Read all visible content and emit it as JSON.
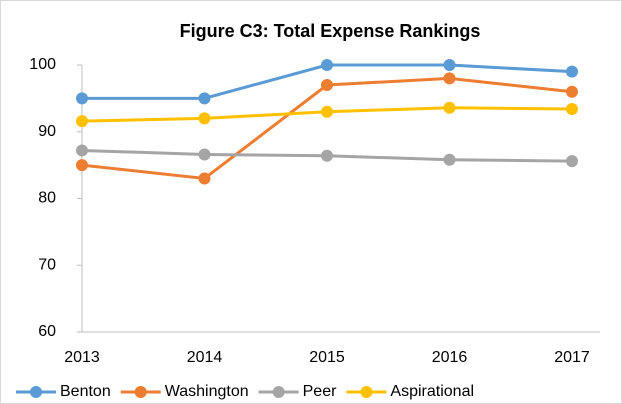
{
  "chart_data": {
    "type": "line",
    "title": "Figure C3: Total Expense Rankings",
    "categories": [
      "2013",
      "2014",
      "2015",
      "2016",
      "2017"
    ],
    "series": [
      {
        "name": "Benton",
        "color": "#5b9bd5",
        "values": [
          95,
          95,
          100,
          100,
          99
        ]
      },
      {
        "name": "Washington",
        "color": "#ed7d31",
        "values": [
          85,
          83,
          97,
          98,
          96
        ]
      },
      {
        "name": "Peer",
        "color": "#a5a5a5",
        "values": [
          87.2,
          86.6,
          86.4,
          85.8,
          85.6
        ]
      },
      {
        "name": "Aspirational",
        "color": "#ffc000",
        "values": [
          91.6,
          92,
          93,
          93.6,
          93.4
        ]
      }
    ],
    "ylim": [
      60,
      100
    ],
    "yticks": [
      60,
      70,
      80,
      90,
      100
    ],
    "grid": false,
    "legend": "bottom"
  }
}
